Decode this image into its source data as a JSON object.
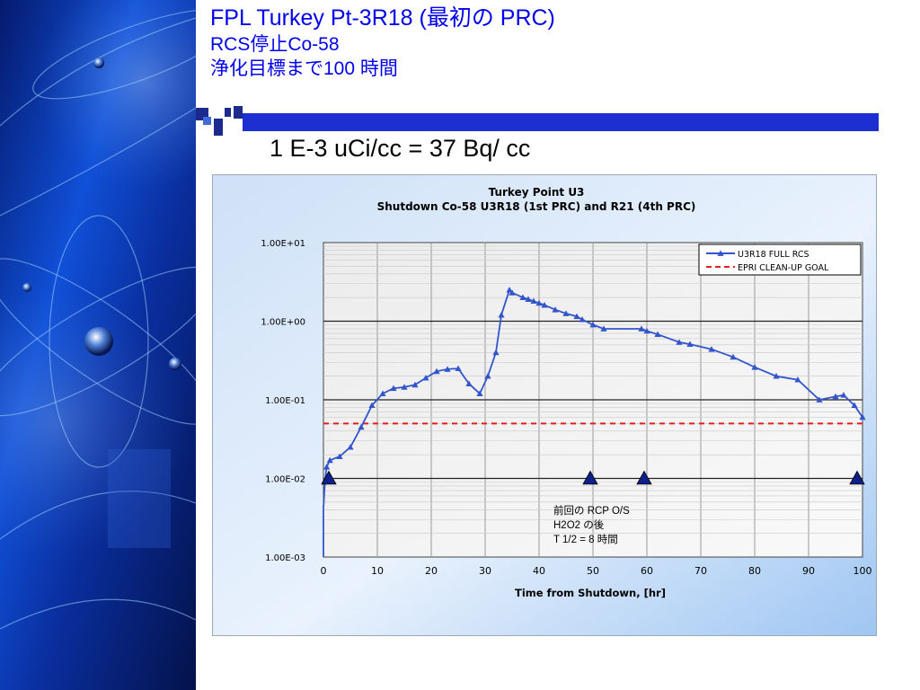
{
  "slide": {
    "title_line1": "FPL Turkey Pt-3R18 (最初の PRC)",
    "title_line2": "RCS停止Co-58",
    "title_line3": "浄化目標まで100 時間",
    "subtitle": "1 E-3 uCi/cc = 37 Bq/ cc",
    "title_color": "#0000ee"
  },
  "annotation": {
    "line1": "前回の RCP O/S",
    "line2": "H2O2  の後",
    "line3": "T 1/2 = 8 時間"
  },
  "chart_data": {
    "type": "line",
    "title": "Turkey Point U3",
    "subtitle": "Shutdown Co-58 U3R18 (1st PRC) and R21 (4th PRC)",
    "xlabel": "Time from Shutdown, [hr]",
    "ylabel": "",
    "x_ticks": [
      "0",
      "10",
      "20",
      "30",
      "40",
      "50",
      "60",
      "70",
      "80",
      "90",
      "100"
    ],
    "y_ticks": [
      "1.00E-03",
      "1.00E-02",
      "1.00E-01",
      "1.00E+00",
      "1.00E+01"
    ],
    "xlim": [
      0,
      100
    ],
    "ylim": [
      0.001,
      10
    ],
    "y_scale": "log",
    "grid": true,
    "legend_position": "top-right",
    "series": [
      {
        "name": "U3R18 FULL RCS",
        "color": "#3355cc",
        "marker": "triangle",
        "points": [
          [
            0,
            0.001
          ],
          [
            0,
            0.0042
          ],
          [
            0.3,
            0.0095
          ],
          [
            0.6,
            0.014
          ],
          [
            1.2,
            0.017
          ],
          [
            3,
            0.019
          ],
          [
            5,
            0.025
          ],
          [
            7,
            0.045
          ],
          [
            9,
            0.085
          ],
          [
            11,
            0.12
          ],
          [
            13,
            0.14
          ],
          [
            15,
            0.145
          ],
          [
            17,
            0.155
          ],
          [
            19,
            0.19
          ],
          [
            21,
            0.23
          ],
          [
            23,
            0.245
          ],
          [
            25,
            0.25
          ],
          [
            27,
            0.16
          ],
          [
            29,
            0.12
          ],
          [
            30.5,
            0.2
          ],
          [
            32,
            0.4
          ],
          [
            33,
            1.2
          ],
          [
            34.5,
            2.5
          ],
          [
            35,
            2.3
          ],
          [
            37,
            2.0
          ],
          [
            38,
            1.9
          ],
          [
            39,
            1.8
          ],
          [
            40,
            1.7
          ],
          [
            41,
            1.6
          ],
          [
            43,
            1.4
          ],
          [
            45,
            1.25
          ],
          [
            47,
            1.15
          ],
          [
            48,
            1.05
          ],
          [
            50,
            0.9
          ],
          [
            52,
            0.8
          ],
          [
            59,
            0.8
          ],
          [
            60,
            0.75
          ],
          [
            62,
            0.68
          ],
          [
            66,
            0.54
          ],
          [
            68,
            0.51
          ],
          [
            72,
            0.44
          ],
          [
            76,
            0.35
          ],
          [
            80,
            0.26
          ],
          [
            84,
            0.2
          ],
          [
            88,
            0.18
          ],
          [
            92,
            0.1
          ],
          [
            95,
            0.11
          ],
          [
            96.5,
            0.115
          ],
          [
            98.5,
            0.085
          ],
          [
            100,
            0.06
          ]
        ]
      },
      {
        "name": "EPRI CLEAN-UP GOAL",
        "color": "#e02020",
        "style": "dashed",
        "points": [
          [
            0,
            0.05
          ],
          [
            100,
            0.05
          ]
        ]
      }
    ],
    "event_markers": {
      "color": "#10208a",
      "x": [
        1,
        49.5,
        59.5,
        99
      ],
      "y": 0.01
    }
  }
}
